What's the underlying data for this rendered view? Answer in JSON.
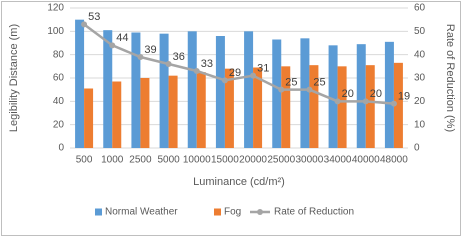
{
  "chart_data": {
    "type": "bar",
    "categories": [
      "500",
      "1000",
      "2500",
      "5000",
      "10000",
      "15000",
      "20000",
      "25000",
      "30000",
      "34000",
      "40000",
      "48000"
    ],
    "xlabel": "Luminance (cd/m²)",
    "ylabel": "Legibility Distance (m)",
    "y2label": "Rate of Reduction (%)",
    "ylim": [
      0,
      120
    ],
    "yticks": [
      0,
      20,
      40,
      60,
      80,
      100,
      120
    ],
    "y2lim": [
      0,
      60
    ],
    "y2ticks": [
      0,
      10,
      20,
      30,
      40,
      50,
      60
    ],
    "grid": true,
    "legend": "bottom",
    "series": [
      {
        "name": "Normal Weather",
        "color": "#5b9bd5",
        "values": [
          110,
          101,
          99,
          98,
          100,
          96,
          100,
          93,
          94,
          88,
          89,
          91
        ]
      },
      {
        "name": "Fog",
        "color": "#ed7d31",
        "values": [
          51,
          57,
          60,
          62,
          65,
          68,
          69,
          70,
          71,
          70,
          71,
          73
        ]
      },
      {
        "name": "Rate of Reduction",
        "color": "#a5a5a5",
        "type": "line",
        "axis": "y2",
        "values": [
          53,
          44,
          39,
          36,
          33,
          29,
          31,
          25,
          25,
          20,
          20,
          19
        ]
      }
    ]
  }
}
